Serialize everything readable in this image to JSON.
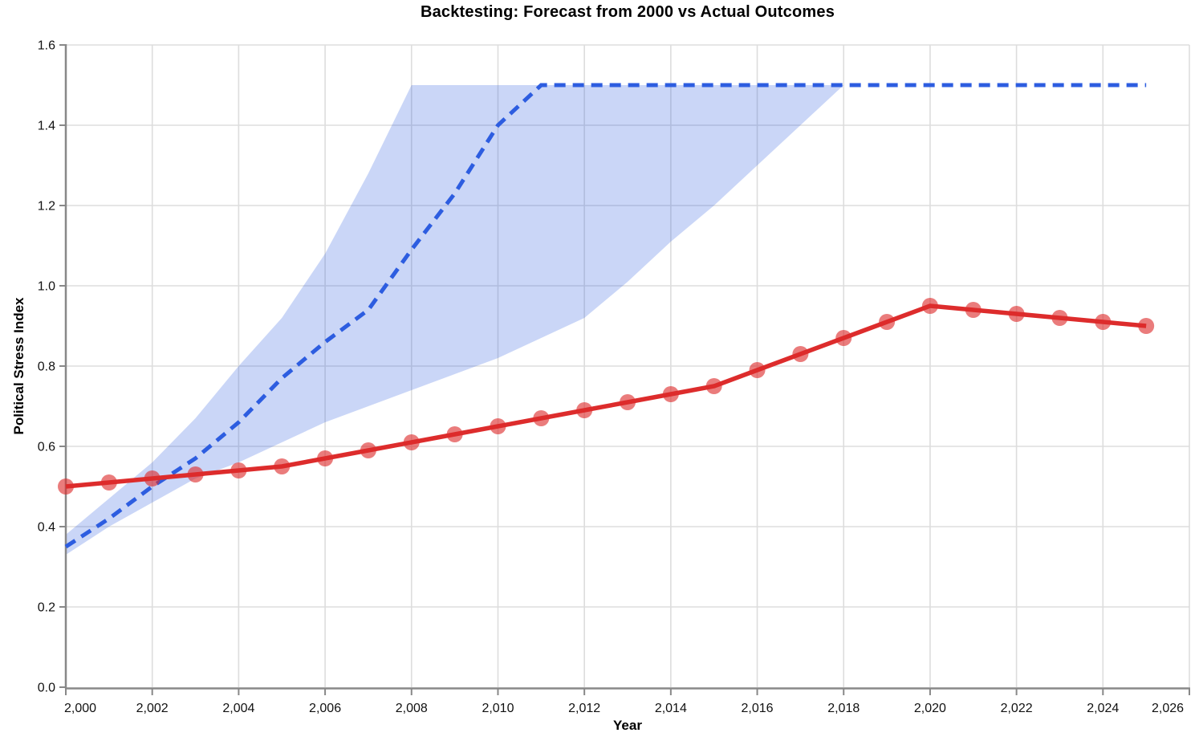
{
  "title": "Backtesting: Forecast from 2000 vs Actual Outcomes",
  "chart_data": {
    "type": "line",
    "title": "Backtesting: Forecast from 2000 vs Actual Outcomes",
    "xlabel": "Year",
    "ylabel": "Political Stress Index",
    "x_domain": [
      2000,
      2026
    ],
    "y_domain": [
      0,
      1.6
    ],
    "grid": true,
    "legend": "none",
    "x_ticks": {
      "values": [
        2000,
        2002,
        2004,
        2006,
        2008,
        2010,
        2012,
        2014,
        2016,
        2018,
        2020,
        2022,
        2024,
        2026
      ],
      "labels": [
        "2,000",
        "2,002",
        "2,004",
        "2,006",
        "2,008",
        "2,010",
        "2,012",
        "2,014",
        "2,016",
        "2,018",
        "2,020",
        "2,022",
        "2,024",
        "2,026"
      ]
    },
    "y_ticks": {
      "values": [
        0,
        0.2,
        0.4,
        0.6,
        0.8,
        1.0,
        1.2,
        1.4,
        1.6
      ],
      "labels": [
        "0.0",
        "0.2",
        "0.4",
        "0.6",
        "0.8",
        "1.0",
        "1.2",
        "1.4",
        "1.6"
      ]
    },
    "years": [
      2000,
      2001,
      2002,
      2003,
      2004,
      2005,
      2006,
      2007,
      2008,
      2009,
      2010,
      2011,
      2012,
      2013,
      2014,
      2015,
      2016,
      2017,
      2018,
      2019,
      2020,
      2021,
      2022,
      2023,
      2024,
      2025
    ],
    "series": [
      {
        "name": "actual_outcomes",
        "style": "solid",
        "color": "#dd2c2c",
        "marker": "circle",
        "marker_opacity": 0.62,
        "line_width": 5.5,
        "values": [
          0.5,
          0.51,
          0.52,
          0.53,
          0.54,
          0.55,
          0.57,
          0.59,
          0.61,
          0.63,
          0.65,
          0.67,
          0.69,
          0.71,
          0.73,
          0.75,
          0.79,
          0.83,
          0.87,
          0.91,
          0.95,
          0.94,
          0.93,
          0.92,
          0.91,
          0.9
        ]
      },
      {
        "name": "forecast_from_2000",
        "style": "dashed",
        "color": "#2d5de0",
        "marker": "none",
        "line_width": 5,
        "values": [
          0.35,
          0.42,
          0.5,
          0.57,
          0.66,
          0.77,
          0.86,
          0.94,
          1.09,
          1.23,
          1.4,
          1.5,
          1.5,
          1.5,
          1.5,
          1.5,
          1.5,
          1.5,
          1.5,
          1.5,
          1.5,
          1.5,
          1.5,
          1.5,
          1.5,
          1.5
        ]
      }
    ],
    "band": {
      "name": "forecast_uncertainty_band",
      "color": "#2d5de0",
      "opacity": 0.25,
      "years": [
        2000,
        2001,
        2002,
        2003,
        2004,
        2005,
        2006,
        2007,
        2008,
        2009,
        2010,
        2011,
        2012,
        2013,
        2014,
        2015,
        2016,
        2017,
        2018
      ],
      "lower": [
        0.33,
        0.4,
        0.46,
        0.52,
        0.56,
        0.61,
        0.66,
        0.7,
        0.74,
        0.78,
        0.82,
        0.87,
        0.92,
        1.01,
        1.11,
        1.2,
        1.3,
        1.4,
        1.5
      ],
      "upper": [
        0.38,
        0.47,
        0.56,
        0.67,
        0.8,
        0.92,
        1.08,
        1.28,
        1.5,
        1.5,
        1.5,
        1.5,
        1.5,
        1.5,
        1.5,
        1.5,
        1.5,
        1.5,
        1.5
      ]
    },
    "style": {
      "grid_color": "#dddddd",
      "axis_color": "#888888",
      "label_color": "#111111",
      "background": "#ffffff"
    }
  }
}
